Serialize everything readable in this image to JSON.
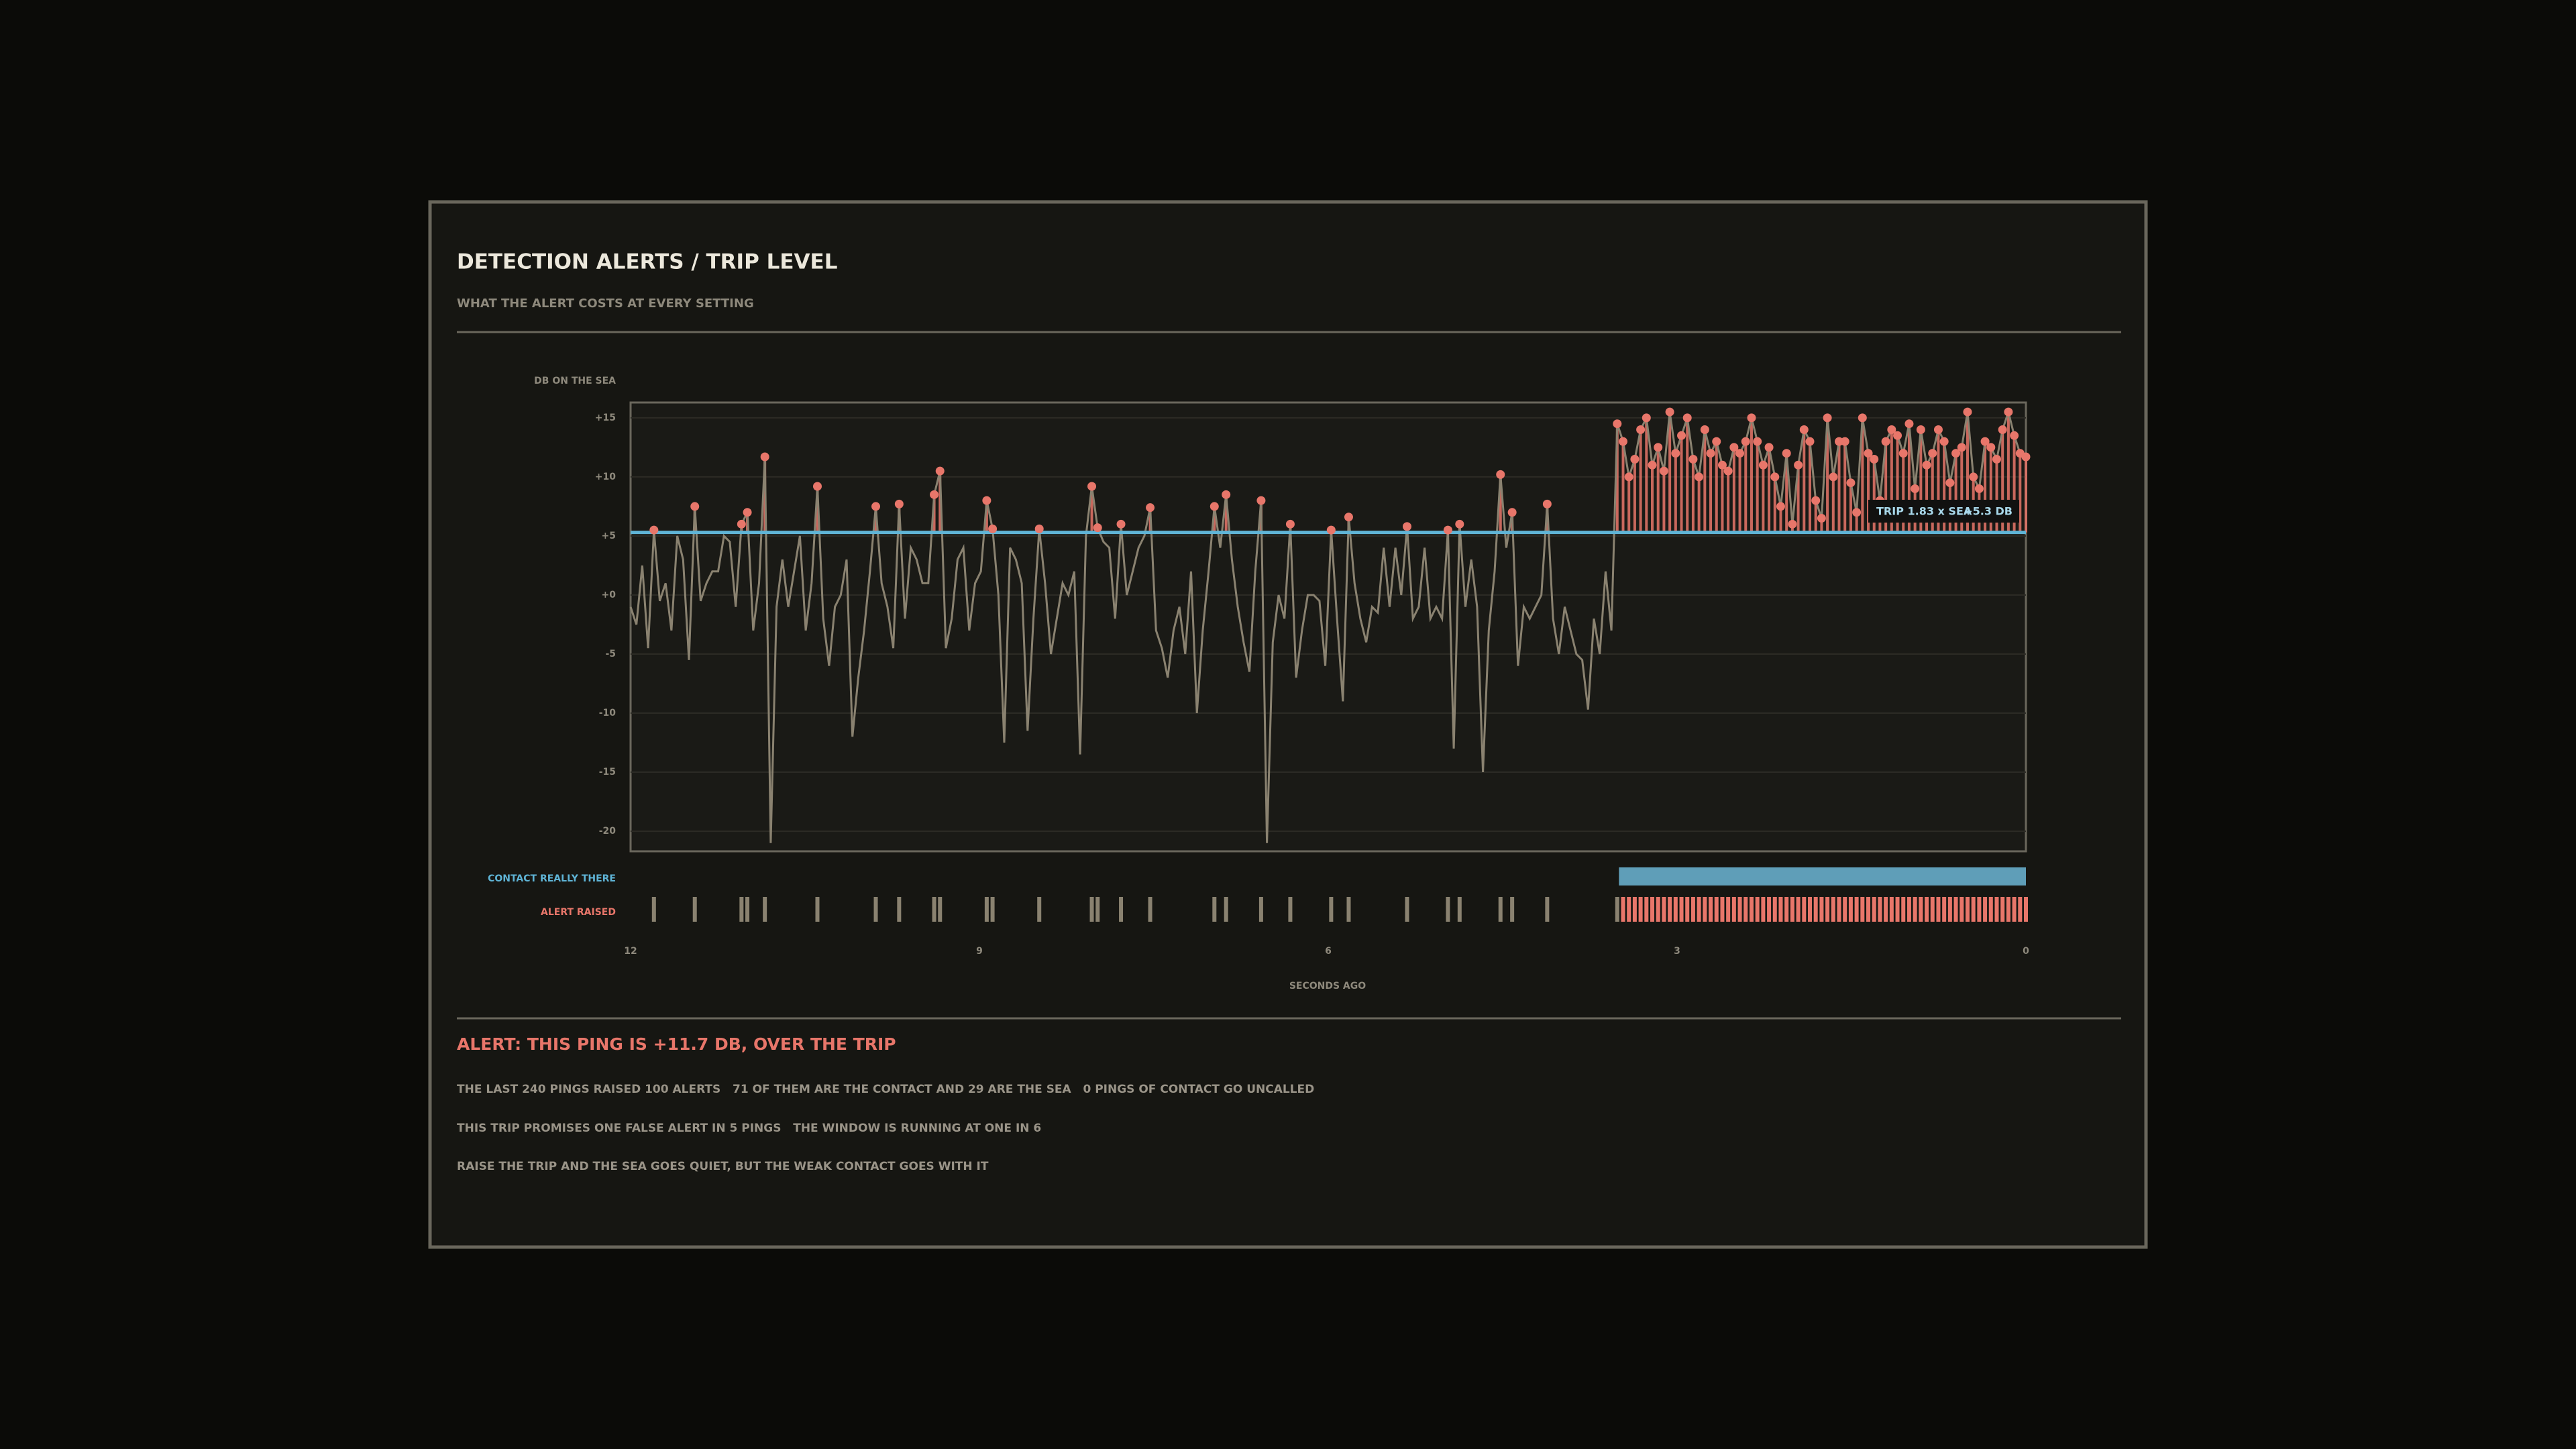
{
  "header": {
    "title": "DETECTION ALERTS / TRIP LEVEL",
    "subtitle": "WHAT THE ALERT COSTS AT EVERY SETTING"
  },
  "chart_data": {
    "type": "line",
    "y_label": "DB ON THE SEA",
    "x_label": "SECONDS AGO",
    "color": "#8a8270",
    "alert_color": "#e8766a",
    "false_alert_color": "#8a8270",
    "grid": true,
    "ylim": [
      -21.7,
      16.3
    ],
    "yticks": [
      {
        "value": 15,
        "label": "+15"
      },
      {
        "value": 10,
        "label": "+10"
      },
      {
        "value": 5,
        "label": "+5"
      },
      {
        "value": 0,
        "label": "+0"
      },
      -5,
      -10,
      -15,
      -20
    ],
    "xlim": [
      12,
      0
    ],
    "xticks": [
      12,
      9,
      6,
      3,
      0
    ],
    "trip": {
      "value": 5.3,
      "label": "+5.3 DB",
      "name": "TRIP 1.83 x SEA",
      "color": "#5fb4d6"
    },
    "contact": {
      "label": "CONTACT REALLY THERE",
      "span": [
        3.5,
        0
      ],
      "color": "#5f9eb8"
    },
    "alerts_label": "ALERT RAISED",
    "values": [
      -1,
      -2.5,
      2.5,
      -4.5,
      5.5,
      -0.5,
      1,
      -3,
      5,
      3,
      -5.5,
      7.5,
      -0.5,
      1,
      2,
      2,
      5,
      4.5,
      -1,
      6,
      7,
      -3,
      1,
      11.7,
      -21,
      -1,
      3,
      -1,
      2,
      5,
      -3,
      1,
      9.2,
      -2,
      -6,
      -1,
      0,
      3,
      -12,
      -7,
      -3,
      2,
      7.5,
      1,
      -1,
      -4.5,
      7.7,
      -2,
      4,
      3,
      1,
      1,
      8.5,
      10.5,
      -4.5,
      -2,
      3,
      4,
      -3,
      1,
      2,
      8,
      5.6,
      0,
      -12.5,
      4,
      3,
      1,
      -11.5,
      -2,
      5.6,
      1,
      -5,
      -2,
      1,
      0,
      2,
      -13.5,
      5,
      9.2,
      5.7,
      4.5,
      4,
      -2,
      6,
      0,
      2,
      4,
      5,
      7.4,
      -3,
      -4.5,
      -7,
      -3,
      -1,
      -5,
      2,
      -10,
      -3,
      2,
      7.5,
      4,
      8.5,
      3,
      -1,
      -4,
      -6.5,
      2,
      8,
      -21,
      -4,
      0,
      -2,
      6,
      -7,
      -3,
      0,
      0,
      -0.5,
      -6,
      5.5,
      -2,
      -9,
      6.6,
      1,
      -2,
      -4,
      -1,
      -1.5,
      4,
      -1,
      4,
      0,
      5.8,
      -2,
      -1,
      4,
      -2,
      -1,
      -2,
      5.5,
      -13,
      6,
      -1,
      3,
      -1,
      -15,
      -3,
      2,
      10.2,
      4,
      7,
      -6,
      -1,
      -2,
      -1,
      0,
      7.7,
      -2,
      -5,
      -1,
      -3,
      -5,
      -5.5,
      -9.7,
      -2,
      -5,
      2,
      -3,
      14.5,
      13,
      10,
      11.5,
      14,
      15,
      11,
      12.5,
      10.5,
      15.5,
      12,
      13.5,
      15,
      11.5,
      10,
      14,
      12,
      13,
      11,
      10.5,
      12.5,
      12,
      13,
      15,
      13,
      11,
      12.5,
      10,
      7.5,
      12,
      6,
      11,
      14,
      13,
      8,
      6.5,
      15,
      10,
      13,
      13,
      9.5,
      7,
      15,
      12,
      11.5,
      8,
      13,
      14,
      13.5,
      12,
      14.5,
      9,
      14,
      11,
      12,
      14,
      13,
      9.5,
      12,
      12.5,
      15.5,
      10,
      9,
      13,
      12.5,
      11.5,
      14,
      15.5,
      13.5,
      12,
      11.7
    ]
  },
  "report": {
    "alert": "ALERT: THIS PING IS +11.7 DB, OVER THE TRIP",
    "lines": [
      "THE LAST 240 PINGS RAISED 100 ALERTS   71 OF THEM ARE THE CONTACT AND 29 ARE THE SEA   0 PINGS OF CONTACT GO UNCALLED",
      "THIS TRIP PROMISES ONE FALSE ALERT IN 5 PINGS   THE WINDOW IS RUNNING AT ONE IN 6",
      "RAISE THE TRIP AND THE SEA GOES QUIET, BUT THE WEAK CONTACT GOES WITH IT"
    ]
  }
}
